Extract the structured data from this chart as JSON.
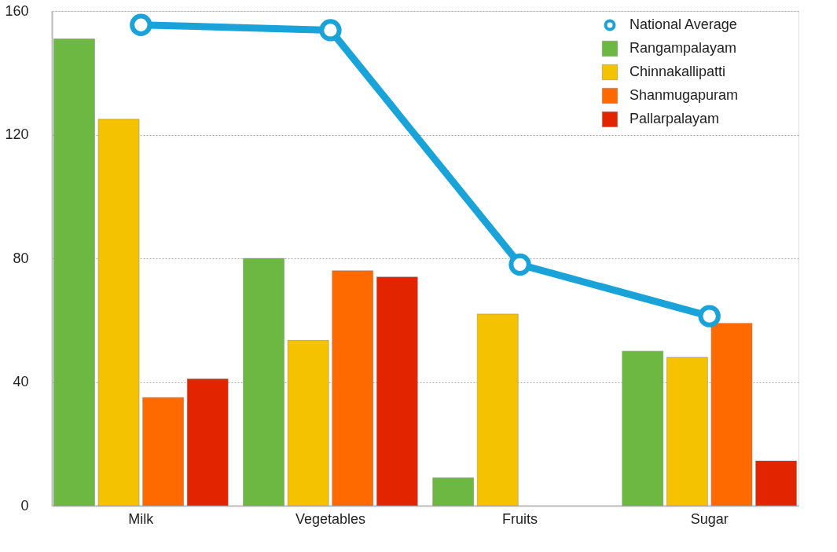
{
  "chart_data": {
    "type": "bar",
    "categories": [
      "Milk",
      "Vegetables",
      "Fruits",
      "Sugar"
    ],
    "series": [
      {
        "name": "National Average",
        "type": "line",
        "color": "#1aa3d9",
        "marker": "circle",
        "values": [
          155.5,
          153.8,
          78,
          61.3
        ]
      },
      {
        "name": "Rangampalayam",
        "color": "#6db843",
        "values": [
          151,
          80,
          9,
          50
        ]
      },
      {
        "name": "Chinnakallipatti",
        "color": "#f5c200",
        "values": [
          125,
          53.5,
          62,
          48
        ]
      },
      {
        "name": "Shanmugapuram",
        "color": "#ff6a00",
        "values": [
          35,
          76,
          null,
          59
        ]
      },
      {
        "name": "Pallarpalayam",
        "color": "#e32400",
        "values": [
          41,
          74,
          null,
          14.5
        ]
      }
    ],
    "ylim": [
      0,
      160
    ],
    "yticks": [
      0,
      40,
      80,
      120,
      160
    ],
    "grid": "y",
    "legend": "top right"
  }
}
